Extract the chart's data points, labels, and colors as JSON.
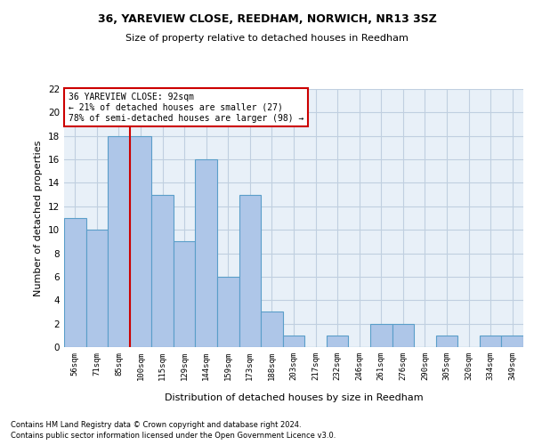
{
  "title1": "36, YAREVIEW CLOSE, REEDHAM, NORWICH, NR13 3SZ",
  "title2": "Size of property relative to detached houses in Reedham",
  "xlabel": "Distribution of detached houses by size in Reedham",
  "ylabel": "Number of detached properties",
  "categories": [
    "56sqm",
    "71sqm",
    "85sqm",
    "100sqm",
    "115sqm",
    "129sqm",
    "144sqm",
    "159sqm",
    "173sqm",
    "188sqm",
    "203sqm",
    "217sqm",
    "232sqm",
    "246sqm",
    "261sqm",
    "276sqm",
    "290sqm",
    "305sqm",
    "320sqm",
    "334sqm",
    "349sqm"
  ],
  "values": [
    11,
    10,
    18,
    18,
    13,
    9,
    16,
    6,
    13,
    3,
    1,
    0,
    1,
    0,
    2,
    2,
    0,
    1,
    0,
    1,
    1
  ],
  "bar_color": "#aec6e8",
  "bar_edge_color": "#5a9ec9",
  "vline_x_index": 2,
  "annotation_line1": "36 YAREVIEW CLOSE: 92sqm",
  "annotation_line2": "← 21% of detached houses are smaller (27)",
  "annotation_line3": "78% of semi-detached houses are larger (98) →",
  "annotation_box_color": "#ffffff",
  "annotation_box_edge_color": "#cc0000",
  "vline_color": "#cc0000",
  "ylim": [
    0,
    22
  ],
  "yticks": [
    0,
    2,
    4,
    6,
    8,
    10,
    12,
    14,
    16,
    18,
    20,
    22
  ],
  "grid_color": "#c0cfe0",
  "bg_color": "#e8f0f8",
  "footnote1": "Contains HM Land Registry data © Crown copyright and database right 2024.",
  "footnote2": "Contains public sector information licensed under the Open Government Licence v3.0."
}
